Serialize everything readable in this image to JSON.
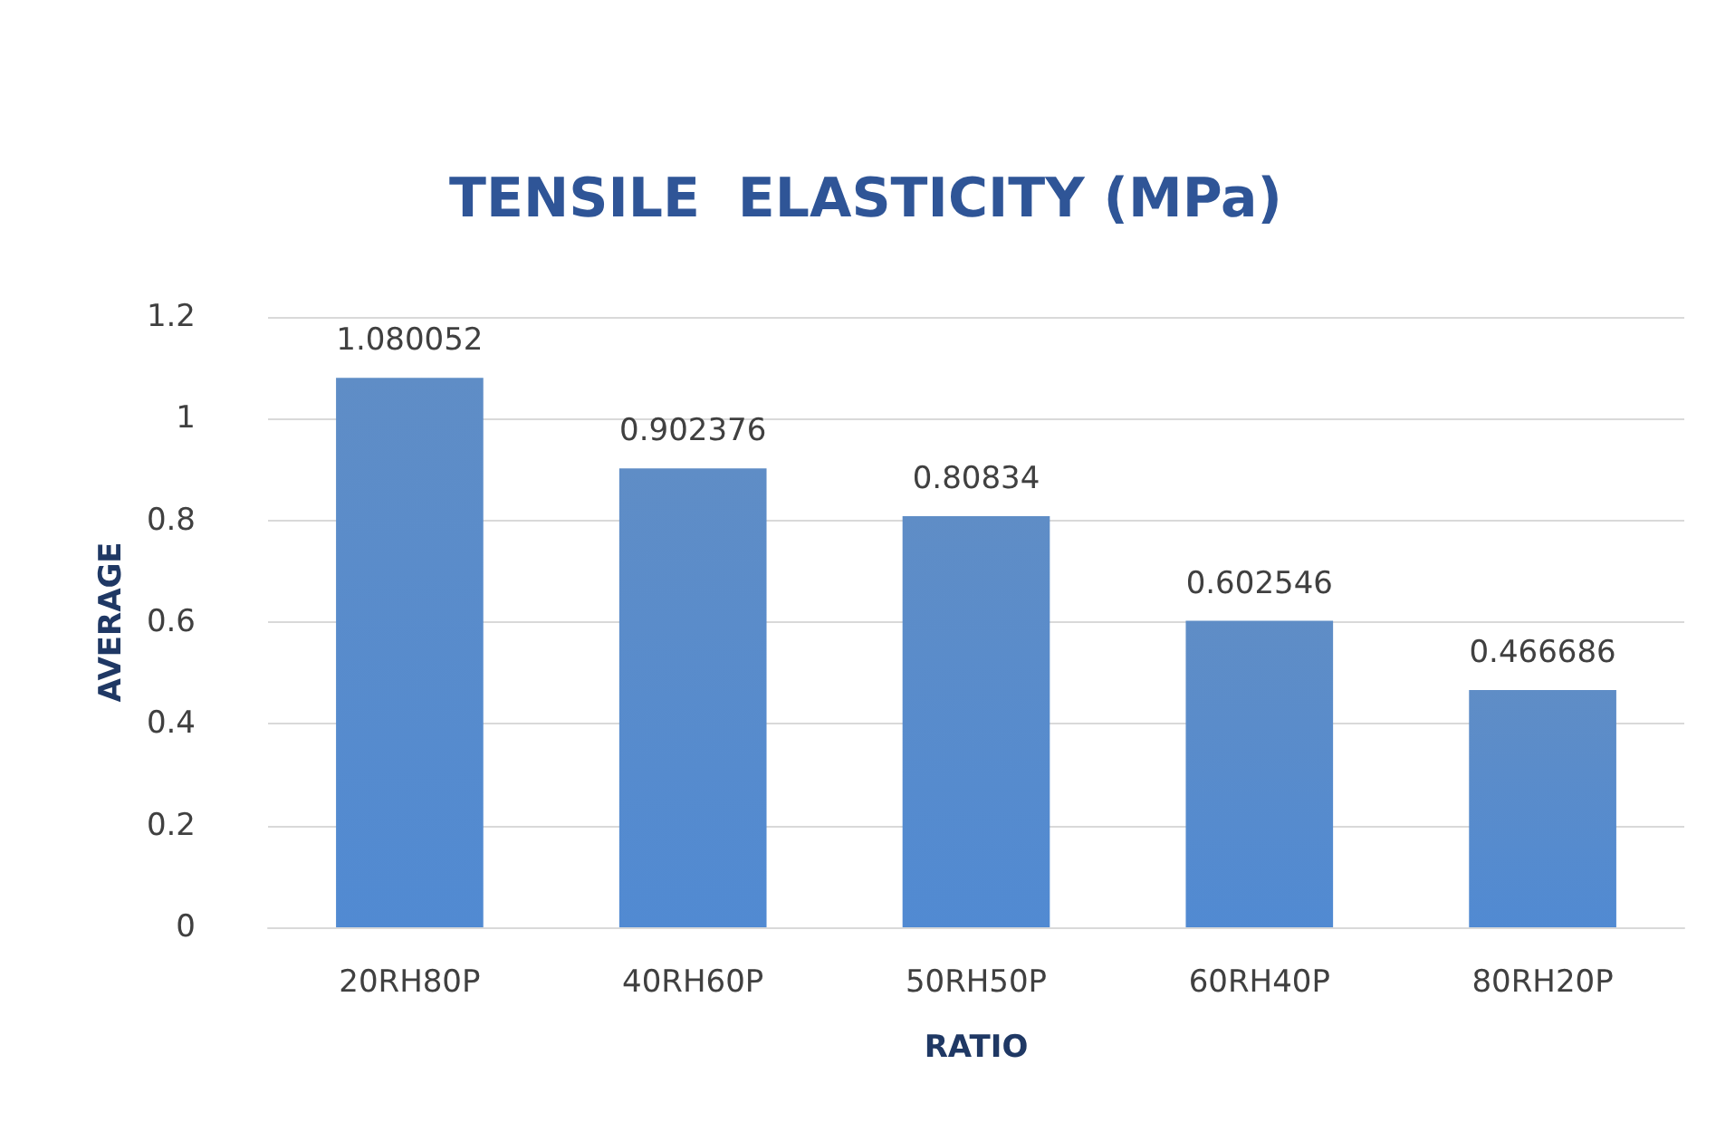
{
  "chart_data": {
    "type": "bar",
    "title": "TENSILE  ELASTICITY (MPa)",
    "xlabel": "RATIO",
    "ylabel": "AVERAGE",
    "categories": [
      "20RH80P",
      "40RH60P",
      "50RH50P",
      "60RH40P",
      "80RH20P"
    ],
    "values": [
      1.080052,
      0.902376,
      0.80834,
      0.602546,
      0.466686
    ],
    "color": "#4a7ebf",
    "ylim": [
      0,
      1.2
    ],
    "yticks": [
      0,
      0.2,
      0.4,
      0.6,
      0.8,
      1,
      1.2
    ],
    "grid": "y",
    "data_labels": true
  }
}
